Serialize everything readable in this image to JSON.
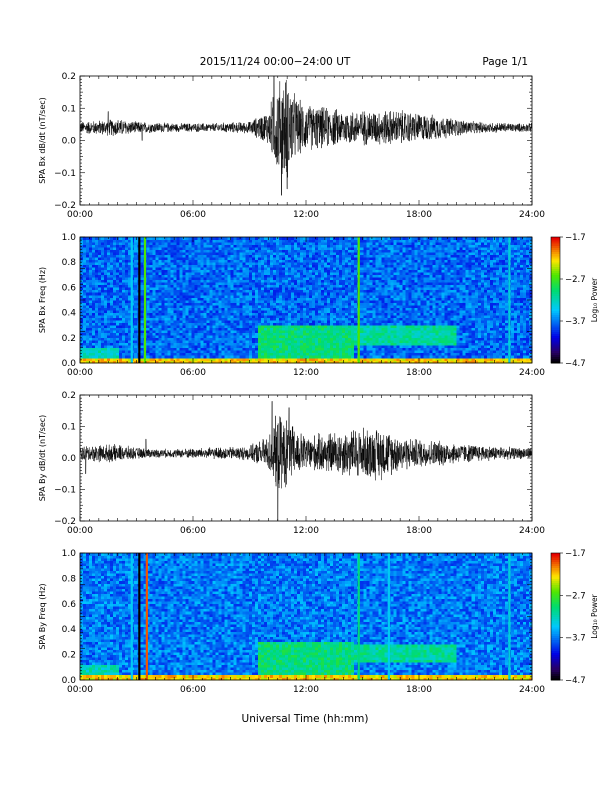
{
  "header": {
    "title": "2015/11/24  00:00−24:00 UT",
    "page": "Page 1/1"
  },
  "xaxis": {
    "label": "Universal Time (hh:mm)",
    "ticks": [
      "00:00",
      "06:00",
      "12:00",
      "18:00",
      "24:00"
    ],
    "range_hours": [
      0,
      24
    ]
  },
  "chart_data": [
    {
      "type": "line",
      "name": "panel-bx-timeseries",
      "ylabel": "SPA Bx dB/dt (nT/sec)",
      "ylim": [
        -0.2,
        0.2
      ],
      "yticks": [
        "0.2",
        "0.1",
        "0.0",
        "−0.1",
        "−0.2"
      ],
      "ytick_values": [
        0.2,
        0.1,
        0.0,
        -0.1,
        -0.2
      ],
      "baseline": 0.04,
      "envelope": {
        "x_hours": [
          0,
          1,
          2,
          3,
          4,
          5,
          6,
          7,
          8,
          9,
          10,
          10.5,
          11,
          11.5,
          12,
          13,
          14,
          15,
          16,
          17,
          18,
          19,
          20,
          21,
          22,
          23,
          24
        ],
        "amp": [
          0.02,
          0.025,
          0.03,
          0.02,
          0.018,
          0.015,
          0.015,
          0.015,
          0.018,
          0.02,
          0.06,
          0.16,
          0.18,
          0.1,
          0.08,
          0.07,
          0.06,
          0.06,
          0.06,
          0.06,
          0.05,
          0.04,
          0.03,
          0.02,
          0.018,
          0.015,
          0.015
        ]
      },
      "spikes": [
        {
          "x": 1.5,
          "y": 0.09
        },
        {
          "x": 3.3,
          "y": 0.0
        },
        {
          "x": 10.3,
          "y": 0.2
        },
        {
          "x": 10.7,
          "y": -0.17
        },
        {
          "x": 11.0,
          "y": -0.15
        }
      ]
    },
    {
      "type": "heatmap",
      "name": "panel-bx-spectrogram",
      "ylabel": "SPA Bx Freq (Hz)",
      "ylim": [
        0,
        1.0
      ],
      "yticks": [
        "1.0",
        "0.8",
        "0.6",
        "0.4",
        "0.2",
        "0.0"
      ],
      "ytick_values": [
        1.0,
        0.8,
        0.6,
        0.4,
        0.2,
        0.0
      ],
      "colorbar": {
        "label": "Log₁₀ Power",
        "ticks": [
          "−1.7",
          "−2.7",
          "−3.7",
          "−4.7"
        ],
        "tick_values": [
          -1.7,
          -2.7,
          -3.7,
          -4.7
        ],
        "range": [
          -4.7,
          -1.7
        ]
      },
      "background_level": -3.75,
      "lines": [
        {
          "x": 2.75,
          "level": -3.4
        },
        {
          "x": 3.15,
          "level": -4.7
        },
        {
          "x": 3.45,
          "level": -2.6
        },
        {
          "x": 14.8,
          "level": -2.6
        },
        {
          "x": 22.8,
          "level": -3.3
        }
      ],
      "enhancements": [
        {
          "x0": 0,
          "x1": 24,
          "f0": 0.0,
          "f1": 0.04,
          "level": -2.2
        },
        {
          "x0": 9.5,
          "x1": 14.5,
          "f0": 0.04,
          "f1": 0.3,
          "level": -3.0
        },
        {
          "x0": 14.5,
          "x1": 20,
          "f0": 0.15,
          "f1": 0.3,
          "level": -3.1
        },
        {
          "x0": 0,
          "x1": 2,
          "f0": 0.04,
          "f1": 0.12,
          "level": -3.2
        }
      ]
    },
    {
      "type": "line",
      "name": "panel-by-timeseries",
      "ylabel": "SPA By dB/dt (nT/sec)",
      "ylim": [
        -0.2,
        0.2
      ],
      "yticks": [
        "0.2",
        "0.1",
        "0.0",
        "−0.1",
        "−0.2"
      ],
      "ytick_values": [
        0.2,
        0.1,
        0.0,
        -0.1,
        -0.2
      ],
      "baseline": 0.015,
      "envelope": {
        "x_hours": [
          0,
          1,
          2,
          3,
          4,
          5,
          6,
          7,
          8,
          9,
          10,
          10.5,
          11,
          11.5,
          12,
          13,
          14,
          15,
          16,
          17,
          18,
          19,
          20,
          21,
          22,
          23,
          24
        ],
        "amp": [
          0.025,
          0.03,
          0.03,
          0.02,
          0.015,
          0.015,
          0.018,
          0.02,
          0.022,
          0.025,
          0.06,
          0.14,
          0.12,
          0.08,
          0.06,
          0.07,
          0.08,
          0.09,
          0.09,
          0.06,
          0.05,
          0.045,
          0.035,
          0.03,
          0.025,
          0.02,
          0.02
        ]
      },
      "spikes": [
        {
          "x": 0.3,
          "y": -0.05
        },
        {
          "x": 3.5,
          "y": 0.06
        },
        {
          "x": 10.2,
          "y": 0.18
        },
        {
          "x": 10.5,
          "y": -0.2
        },
        {
          "x": 11.1,
          "y": 0.16
        }
      ]
    },
    {
      "type": "heatmap",
      "name": "panel-by-spectrogram",
      "ylabel": "SPA By Freq (Hz)",
      "ylim": [
        0,
        1.0
      ],
      "yticks": [
        "1.0",
        "0.8",
        "0.6",
        "0.4",
        "0.2",
        "0.0"
      ],
      "ytick_values": [
        1.0,
        0.8,
        0.6,
        0.4,
        0.2,
        0.0
      ],
      "colorbar": {
        "label": "Log₁₀ Power",
        "ticks": [
          "−1.7",
          "−2.7",
          "−3.7",
          "−4.7"
        ],
        "tick_values": [
          -1.7,
          -2.7,
          -3.7,
          -4.7
        ],
        "range": [
          -4.7,
          -1.7
        ]
      },
      "background_level": -3.7,
      "lines": [
        {
          "x": 2.75,
          "level": -3.4
        },
        {
          "x": 3.15,
          "level": -4.7
        },
        {
          "x": 3.55,
          "level": -1.9
        },
        {
          "x": 14.8,
          "level": -3.0
        },
        {
          "x": 16.4,
          "level": -3.4
        },
        {
          "x": 22.8,
          "level": -3.3
        }
      ],
      "enhancements": [
        {
          "x0": 0,
          "x1": 24,
          "f0": 0.0,
          "f1": 0.04,
          "level": -2.2
        },
        {
          "x0": 9.5,
          "x1": 14.5,
          "f0": 0.04,
          "f1": 0.3,
          "level": -3.0
        },
        {
          "x0": 14.5,
          "x1": 20,
          "f0": 0.15,
          "f1": 0.28,
          "level": -3.1
        },
        {
          "x0": 0,
          "x1": 2,
          "f0": 0.04,
          "f1": 0.12,
          "level": -3.2
        }
      ]
    }
  ]
}
